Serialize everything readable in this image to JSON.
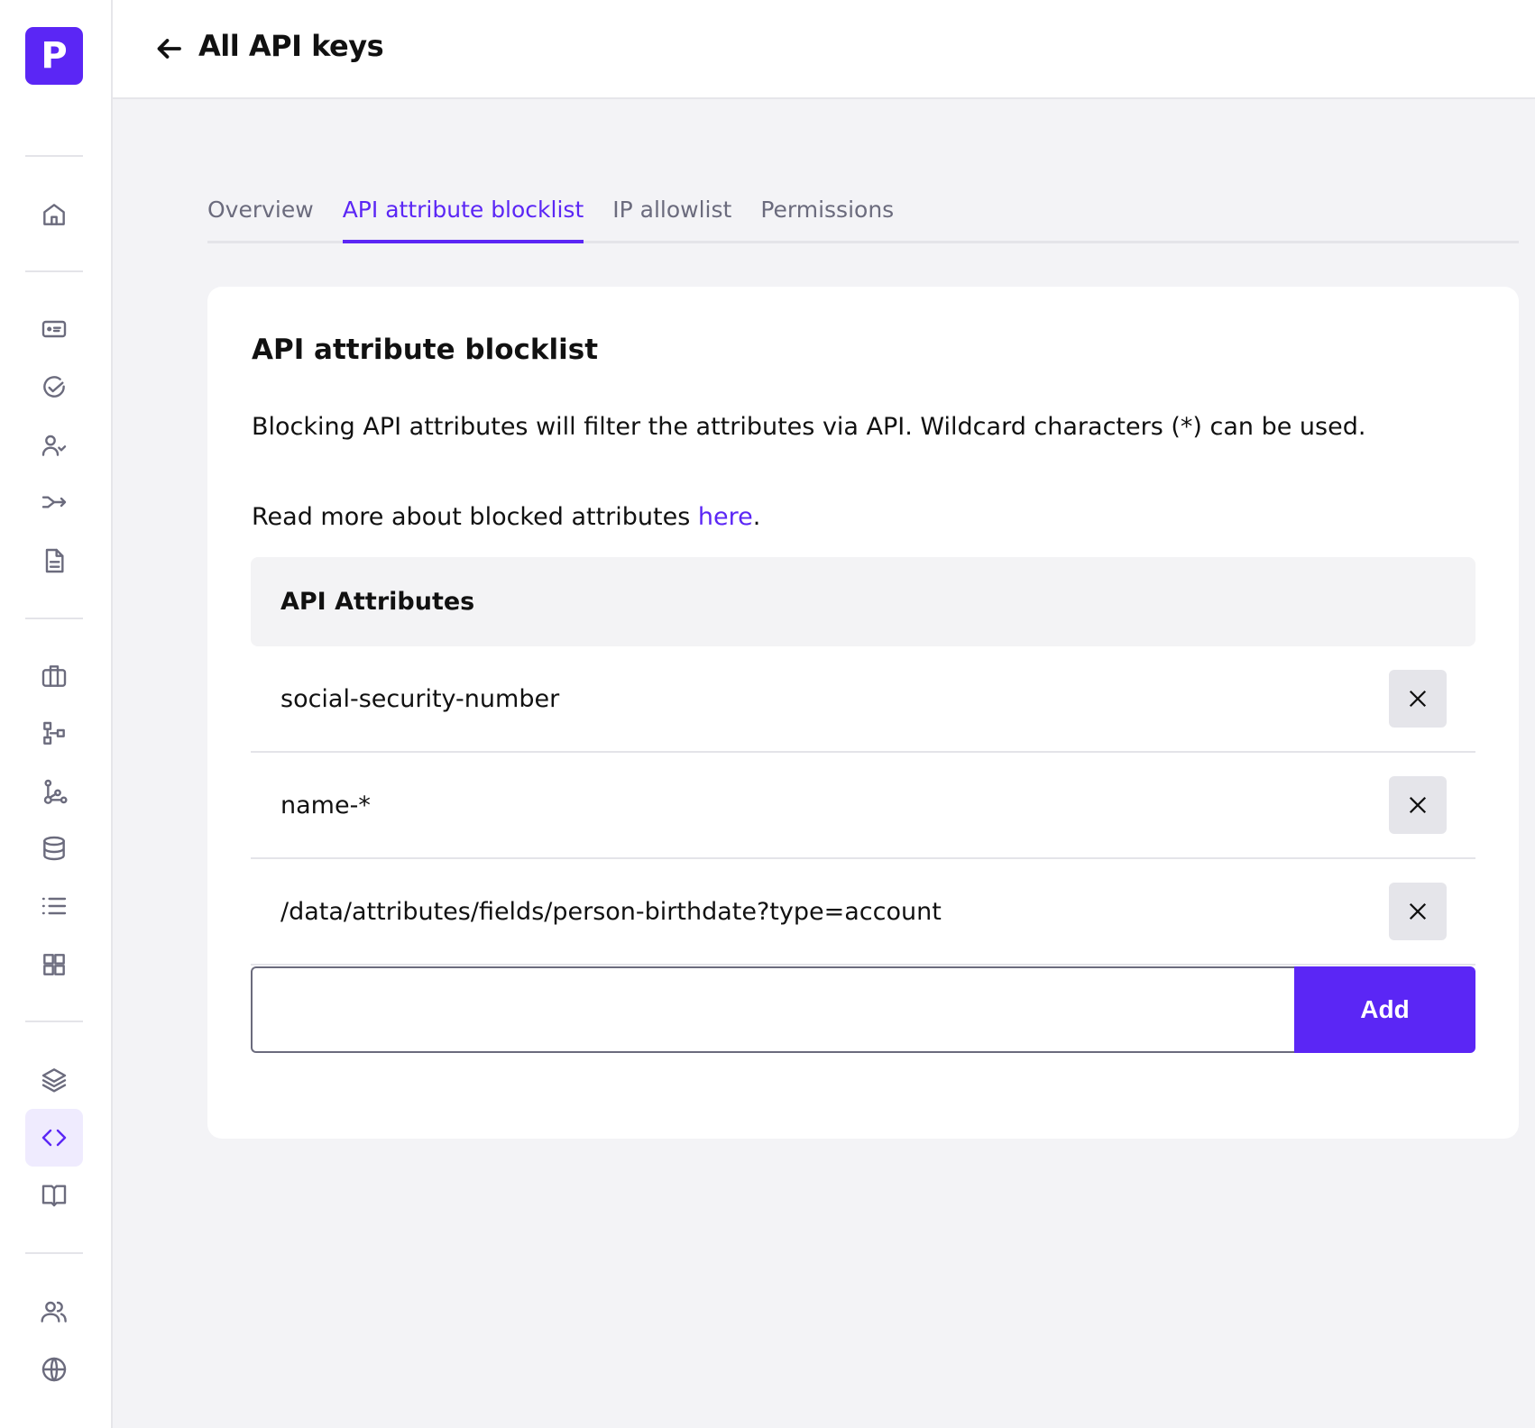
{
  "brand": {
    "logo_letter": "P",
    "accent": "#5b26f5"
  },
  "sidebar": {
    "items": [
      {
        "icon": "home-icon"
      },
      {
        "icon": "id-card-icon"
      },
      {
        "icon": "check-circle-icon"
      },
      {
        "icon": "user-check-icon"
      },
      {
        "icon": "merge-arrow-icon"
      },
      {
        "icon": "document-icon"
      },
      {
        "icon": "briefcase-icon"
      },
      {
        "icon": "hierarchy-icon"
      },
      {
        "icon": "workflow-icon"
      },
      {
        "icon": "database-icon"
      },
      {
        "icon": "list-icon"
      },
      {
        "icon": "grid-icon"
      },
      {
        "icon": "layers-icon"
      },
      {
        "icon": "code-icon",
        "active": true
      },
      {
        "icon": "book-icon"
      },
      {
        "icon": "users-icon"
      },
      {
        "icon": "globe-icon"
      }
    ]
  },
  "header": {
    "back_icon": "arrow-left-icon",
    "title": "All API keys"
  },
  "tabs": [
    {
      "label": "Overview"
    },
    {
      "label": "API attribute blocklist",
      "active": true
    },
    {
      "label": "IP allowlist"
    },
    {
      "label": "Permissions"
    }
  ],
  "card": {
    "title": "API attribute blocklist",
    "description": "Blocking API attributes will filter the attributes via API. Wildcard characters (*) can be used.",
    "read_more_prefix": "Read more about blocked attributes ",
    "read_more_link": "here",
    "read_more_suffix": ".",
    "table_header": "API Attributes",
    "rows": [
      "social-security-number",
      "name-*",
      "/data/attributes/fields/person-birthdate?type=account"
    ],
    "input_value": "",
    "add_label": "Add"
  }
}
